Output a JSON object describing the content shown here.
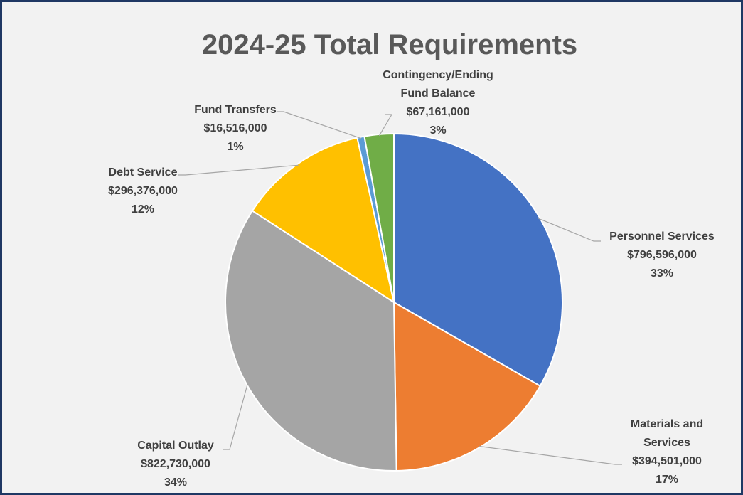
{
  "chart_data": {
    "type": "pie",
    "title": "2024-25 Total Requirements",
    "categories": [
      "Personnel Services",
      "Materials and Services",
      "Capital Outlay",
      "Debt Service",
      "Fund Transfers",
      "Contingency/Ending Fund Balance"
    ],
    "values": [
      796596000,
      394501000,
      822730000,
      296376000,
      16516000,
      67161000
    ],
    "value_labels": [
      "$796,596,000",
      "$394,501,000",
      "$822,730,000",
      "$296,376,000",
      "$16,516,000",
      "$67,161,000"
    ],
    "percents": [
      33,
      17,
      34,
      12,
      1,
      3
    ],
    "percent_labels": [
      "33%",
      "17%",
      "34%",
      "12%",
      "1%",
      "3%"
    ],
    "colors": [
      "#4472c4",
      "#ed7d31",
      "#a5a5a5",
      "#ffc000",
      "#5b9bd5",
      "#70ad47"
    ]
  }
}
